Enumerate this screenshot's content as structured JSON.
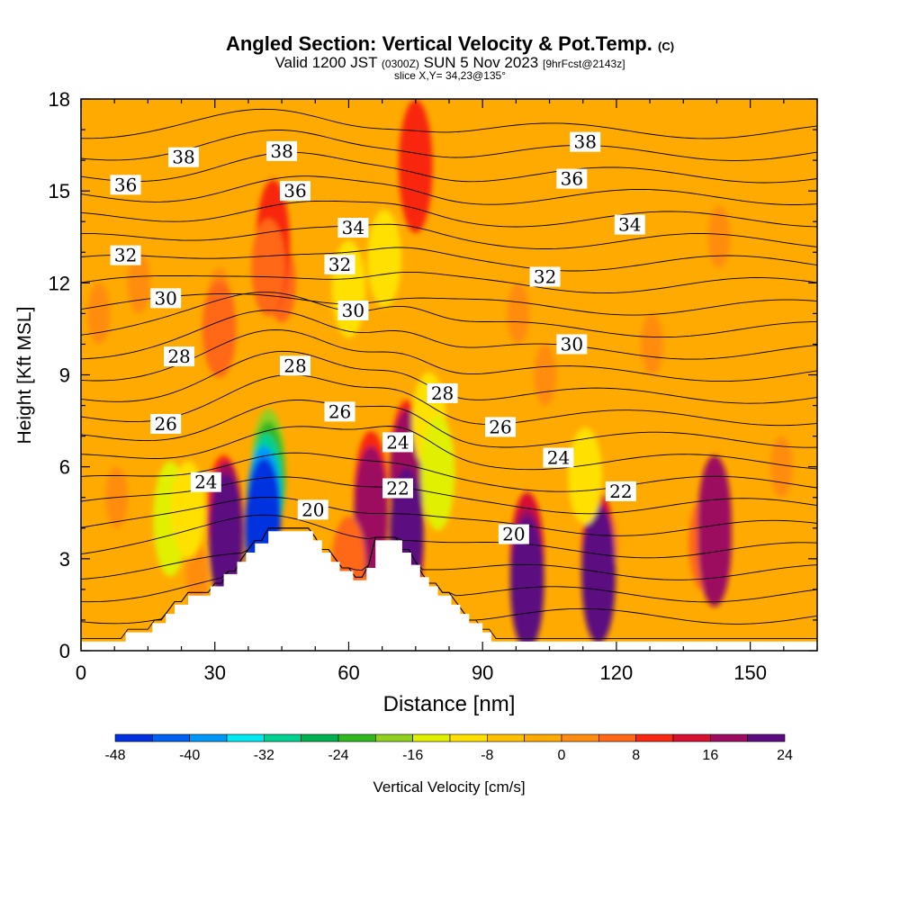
{
  "header": {
    "title": "Angled Section: Vertical Velocity & Pot.Temp.",
    "title_mark": "(C)",
    "valid_prefix": "Valid 1200 JST",
    "valid_utc": "(0300Z)",
    "valid_date": "SUN 5 Nov 2023",
    "forecast": "[9hrFcst@2143z]",
    "slice": "slice X,Y= 34,23@135°"
  },
  "chart_data": {
    "type": "heatmap",
    "xlabel": "Distance [nm]",
    "ylabel": "Height [Kft MSL]",
    "xlim": [
      0,
      165
    ],
    "ylim": [
      0,
      18
    ],
    "x_ticks": [
      0,
      30,
      60,
      90,
      120,
      150
    ],
    "y_ticks": [
      0,
      3,
      6,
      9,
      12,
      15,
      18
    ],
    "colorbar": {
      "label": "Vertical Velocity [cm/s]",
      "tick_labels": [
        "-48",
        "-40",
        "-32",
        "-24",
        "-16",
        "-8",
        "0",
        "8",
        "16",
        "24"
      ],
      "bins": [
        {
          "from": -48,
          "to": -44,
          "color": "#0030e0"
        },
        {
          "from": -44,
          "to": -40,
          "color": "#0060f0"
        },
        {
          "from": -40,
          "to": -36,
          "color": "#0098f8"
        },
        {
          "from": -36,
          "to": -32,
          "color": "#00e8f0"
        },
        {
          "from": -32,
          "to": -28,
          "color": "#00d090"
        },
        {
          "from": -28,
          "to": -24,
          "color": "#00b050"
        },
        {
          "from": -24,
          "to": -20,
          "color": "#30b820"
        },
        {
          "from": -20,
          "to": -16,
          "color": "#90d020"
        },
        {
          "from": -16,
          "to": -12,
          "color": "#e0f000"
        },
        {
          "from": -12,
          "to": -8,
          "color": "#ffe000"
        },
        {
          "from": -8,
          "to": -4,
          "color": "#ffc000"
        },
        {
          "from": -4,
          "to": 0,
          "color": "#ffaa00"
        },
        {
          "from": 0,
          "to": 4,
          "color": "#ff8c10"
        },
        {
          "from": 4,
          "to": 8,
          "color": "#ff6818"
        },
        {
          "from": 8,
          "to": 12,
          "color": "#f82810"
        },
        {
          "from": 12,
          "to": 16,
          "color": "#d81030"
        },
        {
          "from": 16,
          "to": 20,
          "color": "#9c0c60"
        },
        {
          "from": 20,
          "to": 24,
          "color": "#5c0a80"
        }
      ]
    },
    "updraft_cells": [
      {
        "x": 4,
        "y": 11,
        "value": 4
      },
      {
        "x": 13,
        "y": 12,
        "value": 4
      },
      {
        "x": 31,
        "y": 11.5,
        "value": 4
      },
      {
        "x": 45,
        "y": 12,
        "value": 6
      },
      {
        "x": 75,
        "y": 15,
        "value": 6
      },
      {
        "x": 98,
        "y": 11,
        "value": 4
      },
      {
        "x": 104,
        "y": 9,
        "value": 4
      },
      {
        "x": 128,
        "y": 10,
        "value": 4
      },
      {
        "x": 143,
        "y": 13.5,
        "value": 4
      },
      {
        "x": 140,
        "y": 3.5,
        "value": 8
      },
      {
        "x": 118,
        "y": 3.5,
        "value": 4
      },
      {
        "x": 8,
        "y": 5,
        "value": 4
      },
      {
        "x": 26,
        "y": 2.5,
        "value": 4
      },
      {
        "x": 157,
        "y": 6,
        "value": 4
      },
      {
        "x": 43,
        "y": 13.2,
        "value": 12
      },
      {
        "x": 42,
        "y": 12.5,
        "value": 8
      },
      {
        "x": 31,
        "y": 10.5,
        "value": 8
      },
      {
        "x": 32,
        "y": 4.5,
        "value": 10
      },
      {
        "x": 32.5,
        "y": 4.0,
        "value": 18
      },
      {
        "x": 32.5,
        "y": 3.6,
        "value": 22
      },
      {
        "x": 65,
        "y": 5,
        "value": 12
      },
      {
        "x": 65,
        "y": 4.5,
        "value": 18
      },
      {
        "x": 73,
        "y": 6,
        "value": 12
      },
      {
        "x": 73,
        "y": 5.7,
        "value": 20
      },
      {
        "x": 73,
        "y": 3.5,
        "value": 16
      },
      {
        "x": 73,
        "y": 3.8,
        "value": 22
      },
      {
        "x": 75,
        "y": 15.8,
        "value": 12
      },
      {
        "x": 100,
        "y": 3,
        "value": 14
      },
      {
        "x": 100,
        "y": 2.5,
        "value": 20
      },
      {
        "x": 100,
        "y": 2.2,
        "value": 24
      },
      {
        "x": 116,
        "y": 3,
        "value": 14
      },
      {
        "x": 116,
        "y": 2.6,
        "value": 22
      },
      {
        "x": 116,
        "y": 2.4,
        "value": 24
      },
      {
        "x": 142,
        "y": 3.7,
        "value": 12
      },
      {
        "x": 142,
        "y": 4.2,
        "value": 18
      },
      {
        "x": 142,
        "y": 3.6,
        "value": 20
      },
      {
        "x": 60,
        "y": 2.8,
        "value": 8
      }
    ],
    "downdraft_cells": [
      {
        "x": 60,
        "y": 11.8,
        "value": -8
      },
      {
        "x": 68,
        "y": 12.8,
        "value": -8
      },
      {
        "x": 78,
        "y": 7.5,
        "value": -8
      },
      {
        "x": 80,
        "y": 5.8,
        "value": -12
      },
      {
        "x": 20,
        "y": 4.3,
        "value": -12
      },
      {
        "x": 24,
        "y": 4.6,
        "value": -8
      },
      {
        "x": 113,
        "y": 5.7,
        "value": -8
      },
      {
        "x": 42,
        "y": 6.0,
        "value": -16
      },
      {
        "x": 42,
        "y": 5.6,
        "value": -20
      },
      {
        "x": 41.5,
        "y": 5.2,
        "value": -28
      },
      {
        "x": 41,
        "y": 4.8,
        "value": -36
      },
      {
        "x": 41,
        "y": 4.4,
        "value": -44
      },
      {
        "x": 40.5,
        "y": 4.0,
        "value": -48
      }
    ],
    "theta_levels": [
      16,
      17,
      18,
      19,
      20,
      21,
      22,
      23,
      24,
      25,
      26,
      27,
      28,
      29,
      30,
      31,
      32,
      33,
      34,
      35,
      36,
      37,
      38,
      39
    ],
    "contour_labels": [
      {
        "text": "38",
        "x": 23,
        "y": 16.1
      },
      {
        "text": "38",
        "x": 45,
        "y": 16.3
      },
      {
        "text": "38",
        "x": 113,
        "y": 16.6
      },
      {
        "text": "36",
        "x": 10,
        "y": 15.2
      },
      {
        "text": "36",
        "x": 48,
        "y": 15.0
      },
      {
        "text": "36",
        "x": 110,
        "y": 15.4
      },
      {
        "text": "34",
        "x": 61,
        "y": 13.8
      },
      {
        "text": "34",
        "x": 123,
        "y": 13.9
      },
      {
        "text": "32",
        "x": 10,
        "y": 12.9
      },
      {
        "text": "32",
        "x": 58,
        "y": 12.6
      },
      {
        "text": "32",
        "x": 104,
        "y": 12.2
      },
      {
        "text": "30",
        "x": 19,
        "y": 11.5
      },
      {
        "text": "30",
        "x": 61,
        "y": 11.1
      },
      {
        "text": "30",
        "x": 110,
        "y": 10.0
      },
      {
        "text": "28",
        "x": 22,
        "y": 9.6
      },
      {
        "text": "28",
        "x": 48,
        "y": 9.3
      },
      {
        "text": "28",
        "x": 81,
        "y": 8.4
      },
      {
        "text": "26",
        "x": 19,
        "y": 7.4
      },
      {
        "text": "26",
        "x": 58,
        "y": 7.8
      },
      {
        "text": "26",
        "x": 94,
        "y": 7.3
      },
      {
        "text": "24",
        "x": 28,
        "y": 5.5
      },
      {
        "text": "24",
        "x": 71,
        "y": 6.8
      },
      {
        "text": "24",
        "x": 107,
        "y": 6.3
      },
      {
        "text": "22",
        "x": 71,
        "y": 5.3
      },
      {
        "text": "22",
        "x": 121,
        "y": 5.2
      },
      {
        "text": "20",
        "x": 52,
        "y": 4.6
      },
      {
        "text": "20",
        "x": 97,
        "y": 3.8
      }
    ],
    "terrain": [
      [
        0,
        0.3
      ],
      [
        10,
        0.3
      ],
      [
        10,
        0.6
      ],
      [
        16,
        0.6
      ],
      [
        16,
        0.9
      ],
      [
        19,
        0.9
      ],
      [
        19,
        1.2
      ],
      [
        21,
        1.2
      ],
      [
        21,
        1.5
      ],
      [
        24,
        1.5
      ],
      [
        24,
        1.8
      ],
      [
        29,
        1.8
      ],
      [
        29,
        2.1
      ],
      [
        32,
        2.1
      ],
      [
        32,
        2.5
      ],
      [
        35,
        2.5
      ],
      [
        35,
        2.9
      ],
      [
        37,
        2.9
      ],
      [
        37,
        3.2
      ],
      [
        39,
        3.2
      ],
      [
        39,
        3.5
      ],
      [
        42,
        3.5
      ],
      [
        42,
        3.9
      ],
      [
        52,
        3.9
      ],
      [
        52,
        3.6
      ],
      [
        54,
        3.6
      ],
      [
        54,
        3.2
      ],
      [
        56,
        3.2
      ],
      [
        56,
        2.9
      ],
      [
        58,
        2.9
      ],
      [
        58,
        2.6
      ],
      [
        61,
        2.6
      ],
      [
        61,
        2.3
      ],
      [
        64,
        2.3
      ],
      [
        64,
        2.7
      ],
      [
        66,
        2.7
      ],
      [
        66,
        3.6
      ],
      [
        72,
        3.6
      ],
      [
        72,
        3.2
      ],
      [
        74,
        3.2
      ],
      [
        74,
        2.8
      ],
      [
        76,
        2.8
      ],
      [
        76,
        2.4
      ],
      [
        78,
        2.4
      ],
      [
        78,
        2.1
      ],
      [
        80,
        2.1
      ],
      [
        80,
        1.8
      ],
      [
        83,
        1.8
      ],
      [
        83,
        1.5
      ],
      [
        85,
        1.5
      ],
      [
        85,
        1.2
      ],
      [
        87,
        1.2
      ],
      [
        87,
        0.9
      ],
      [
        90,
        0.9
      ],
      [
        90,
        0.6
      ],
      [
        92,
        0.6
      ],
      [
        92,
        0.3
      ],
      [
        165,
        0.3
      ]
    ]
  }
}
